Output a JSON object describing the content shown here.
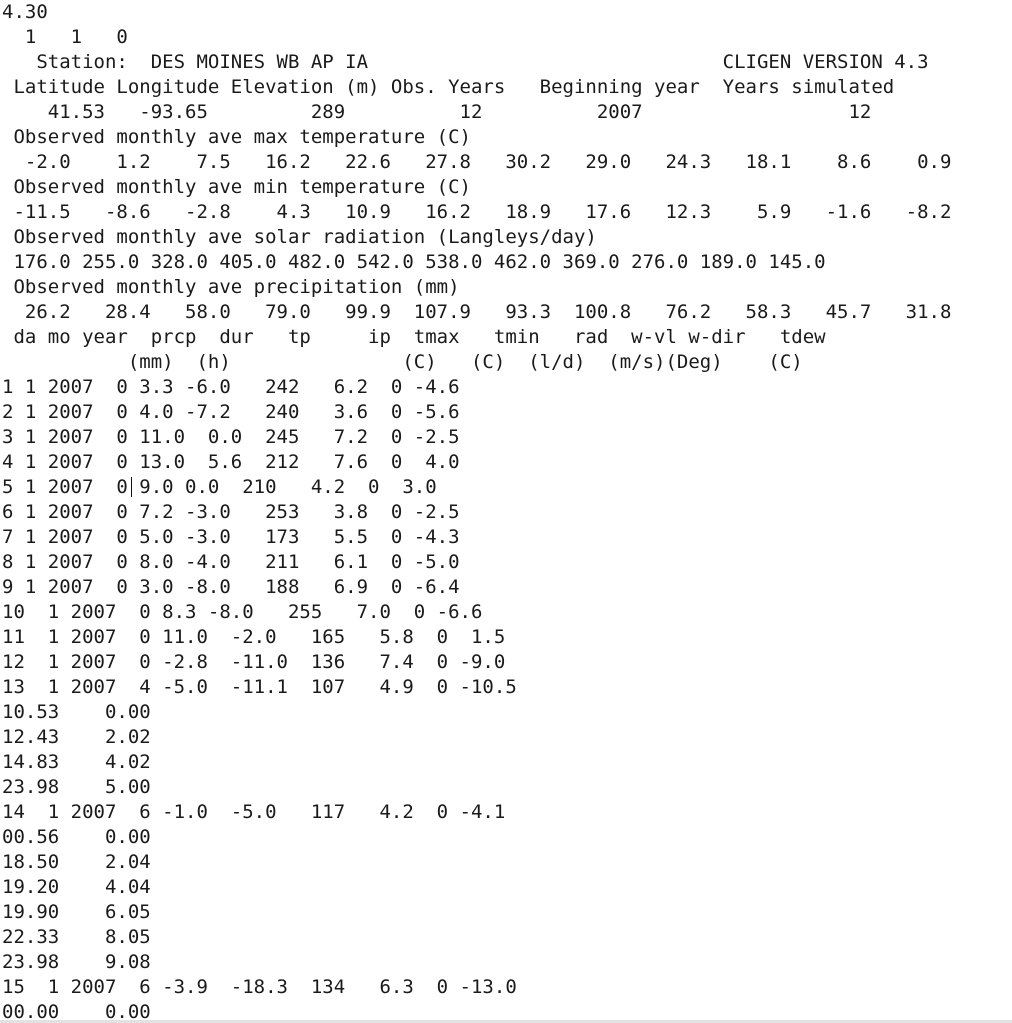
{
  "document": {
    "lines": [
      "4.30",
      "  1   1   0",
      "   Station:  DES MOINES WB AP IA                               CLIGEN VERSION 4.3",
      " Latitude Longitude Elevation (m) Obs. Years   Beginning year  Years simulated",
      "    41.53   -93.65         289          12          2007                  12",
      " Observed monthly ave max temperature (C)",
      "  -2.0    1.2    7.5   16.2   22.6   27.8   30.2   29.0   24.3   18.1    8.6    0.9",
      " Observed monthly ave min temperature (C)",
      " -11.5   -8.6   -2.8    4.3   10.9   16.2   18.9   17.6   12.3    5.9   -1.6   -8.2",
      " Observed monthly ave solar radiation (Langleys/day)",
      " 176.0 255.0 328.0 405.0 482.0 542.0 538.0 462.0 369.0 276.0 189.0 145.0",
      " Observed monthly ave precipitation (mm)",
      "  26.2   28.4   58.0   79.0   99.9  107.9   93.3  100.8   76.2   58.3   45.7   31.8",
      " da mo year  prcp  dur   tp     ip  tmax   tmin   rad  w-vl w-dir   tdew",
      "           (mm)  (h)               (C)   (C)  (l/d)  (m/s)(Deg)    (C)",
      "1 1 2007  0 3.3 -6.0   242   6.2  0 -4.6",
      "2 1 2007  0 4.0 -7.2   240   3.6  0 -5.6",
      "3 1 2007  0 11.0  0.0  245   7.2  0 -2.5",
      "4 1 2007  0 13.0  5.6  212   7.6  0  4.0",
      "5 1 2007  0 9.0 0.0  210   4.2  0  3.0",
      "6 1 2007  0 7.2 -3.0   253   3.8  0 -2.5",
      "7 1 2007  0 5.0 -3.0   173   5.5  0 -4.3",
      "8 1 2007  0 8.0 -4.0   211   6.1  0 -5.0",
      "9 1 2007  0 3.0 -8.0   188   6.9  0 -6.4",
      "10  1 2007  0 8.3 -8.0   255   7.0  0 -6.6",
      "11  1 2007  0 11.0  -2.0   165   5.8  0  1.5",
      "12  1 2007  0 -2.8  -11.0  136   7.4  0 -9.0",
      "13  1 2007  4 -5.0  -11.1  107   4.9  0 -10.5",
      "10.53    0.00",
      "12.43    2.02",
      "14.83    4.02",
      "23.98    5.00",
      "14  1 2007  6 -1.0  -5.0   117   4.2  0 -4.1",
      "00.56    0.00",
      "18.50    2.04",
      "19.20    4.04",
      "19.90    6.05",
      "22.33    8.05",
      "23.98    9.08",
      "15  1 2007  6 -3.9  -18.3  134   6.3  0 -13.0",
      "00.00    0.00"
    ]
  }
}
